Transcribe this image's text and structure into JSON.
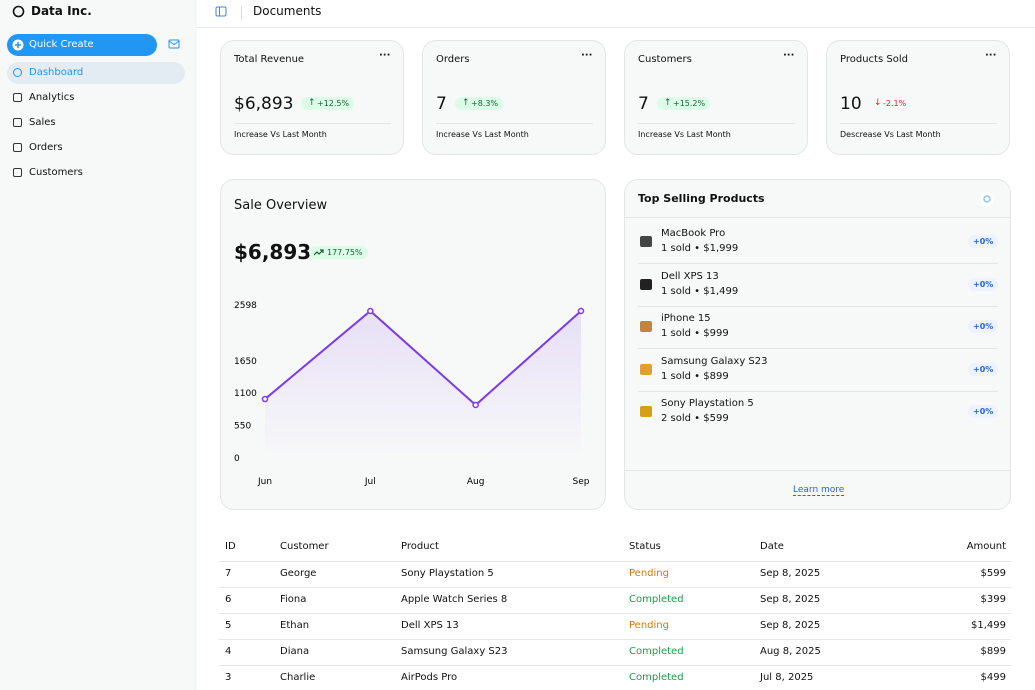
{
  "sidebar": {
    "brand": "Data Inc.",
    "quick_create": "Quick Create",
    "nav": [
      "Dashboard",
      "Analytics",
      "Sales",
      "Orders",
      "Customers"
    ]
  },
  "header": {
    "title": "Documents"
  },
  "stats": [
    {
      "title": "Total Revenue",
      "value": "$6,893",
      "change": "+12.5%",
      "note": "Increase Vs Last Month"
    },
    {
      "title": "Orders",
      "value": "7",
      "change": "+8.3%",
      "note": "Increase Vs Last Month"
    },
    {
      "title": "Customers",
      "value": "7",
      "change": "+15.2%",
      "note": "Increase Vs Last Month"
    },
    {
      "title": "Products Sold",
      "value": "10",
      "change": "-2.1%",
      "note": "Descrease Vs Last Month"
    }
  ],
  "sale_overview": {
    "title": "Sale Overview",
    "total": "$6,893",
    "change": "177.75%",
    "chart_data": {
      "type": "area",
      "categories": [
        "Jun",
        "Jul",
        "Aug",
        "Sep"
      ],
      "values": [
        1001,
        2496,
        900,
        2496
      ],
      "color": "#7c3aed",
      "ylim": [
        0,
        2598
      ],
      "yticks": [
        0,
        550,
        1100,
        1650,
        2598
      ]
    }
  },
  "top_products": {
    "title": "Top Selling Products",
    "items": [
      {
        "name": "MacBook Pro",
        "detail": "1 sold • $1,999",
        "change": "+0%"
      },
      {
        "name": "Dell XPS 13",
        "detail": "1 sold • $1,499",
        "change": "+0%"
      },
      {
        "name": "iPhone 15",
        "detail": "1 sold • $999",
        "change": "+0%"
      },
      {
        "name": "Samsung Galaxy S23",
        "detail": "1 sold • $899",
        "change": "+0%"
      },
      {
        "name": "Sony Playstation 5",
        "detail": "2 sold • $599",
        "change": "+0%"
      }
    ],
    "link": "Learn more"
  },
  "table": {
    "columns": [
      "ID",
      "Customer",
      "Product",
      "Status",
      "Date",
      "Amount"
    ],
    "rows": [
      [
        "7",
        "George",
        "Sony Playstation 5",
        "Pending",
        "Sep 8, 2025",
        "$599"
      ],
      [
        "6",
        "Fiona",
        "Apple Watch Series 8",
        "Completed",
        "Sep 8, 2025",
        "$399"
      ],
      [
        "5",
        "Ethan",
        "Dell XPS 13",
        "Pending",
        "Sep 8, 2025",
        "$1,499"
      ],
      [
        "4",
        "Diana",
        "Samsung Galaxy S23",
        "Completed",
        "Aug 8, 2025",
        "$899"
      ],
      [
        "3",
        "Charlie",
        "AirPods Pro",
        "Completed",
        "Jul 8, 2025",
        "$499"
      ]
    ]
  }
}
